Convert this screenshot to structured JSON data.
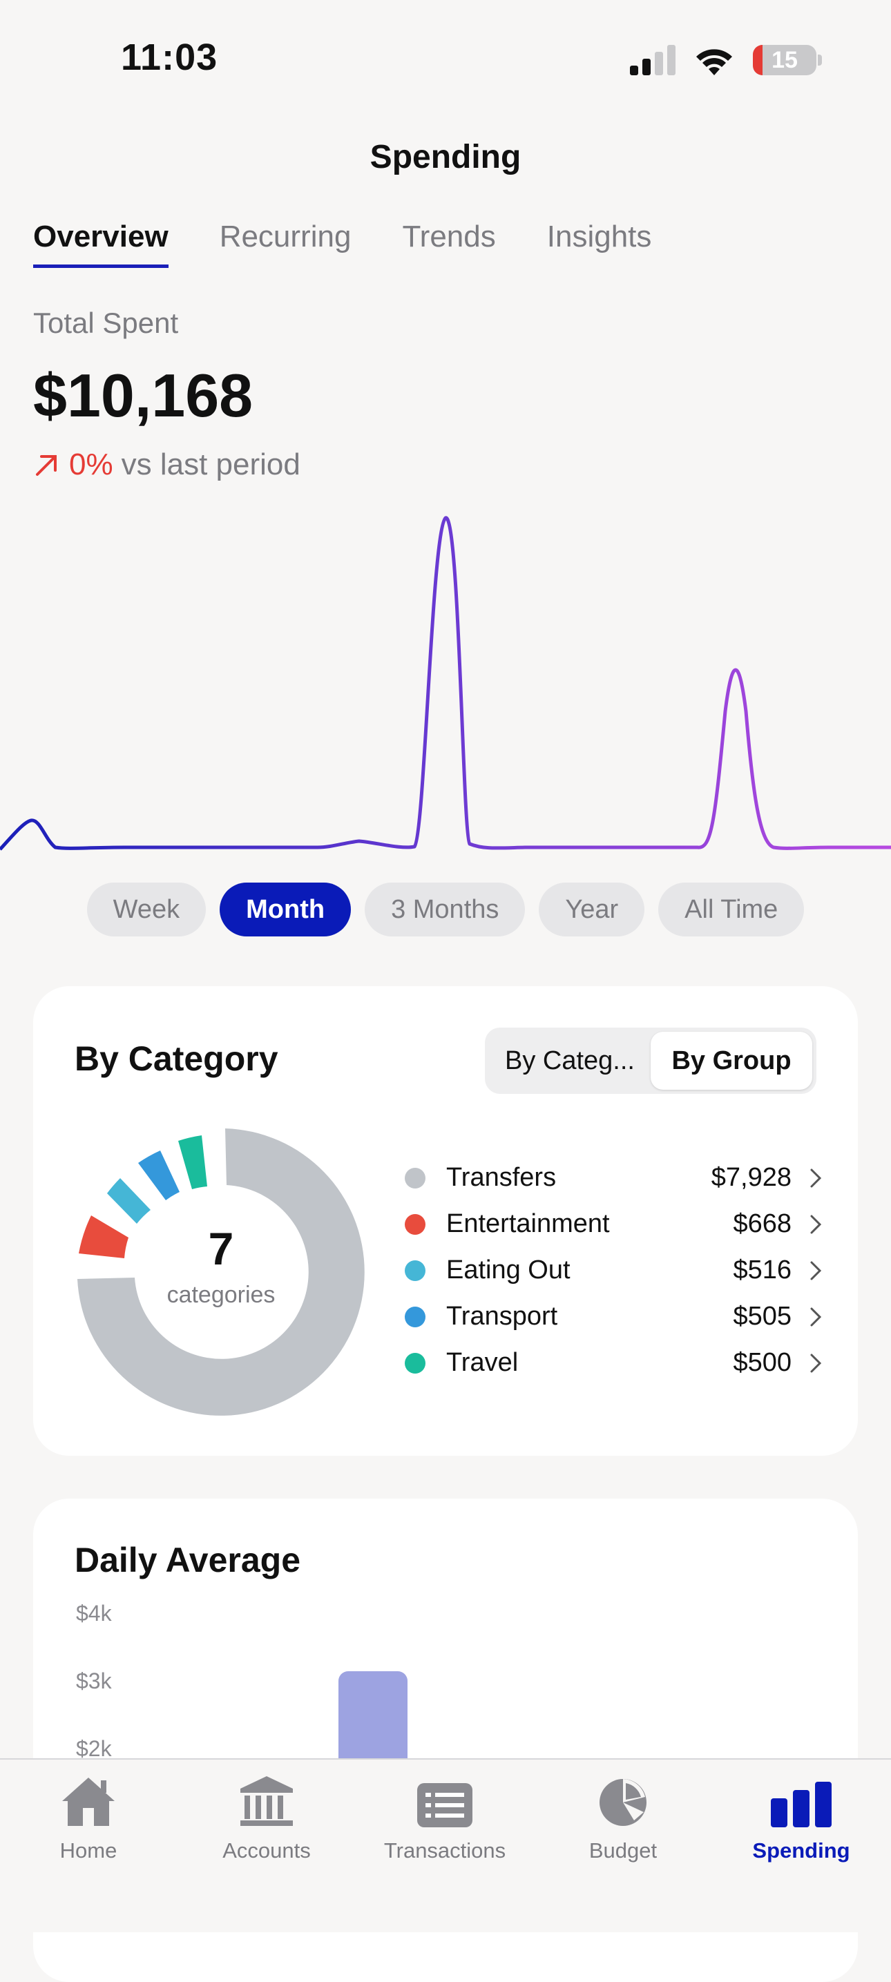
{
  "status_bar": {
    "time": "11:03",
    "battery": "15"
  },
  "header": {
    "title": "Spending"
  },
  "tabs": [
    {
      "label": "Overview",
      "active": true
    },
    {
      "label": "Recurring",
      "active": false
    },
    {
      "label": "Trends",
      "active": false
    },
    {
      "label": "Insights",
      "active": false
    }
  ],
  "summary": {
    "label": "Total Spent",
    "value": "$10,168",
    "change_pct": "0%",
    "change_text": "vs last period"
  },
  "periods": [
    "Week",
    "Month",
    "3 Months",
    "Year",
    "All Time"
  ],
  "selected_period": "Month",
  "category_card": {
    "title": "By Category",
    "toggle": [
      "By Categ...",
      "By Group"
    ],
    "toggle_selected": "By Group",
    "center_count": "7",
    "center_label": "categories",
    "items": [
      {
        "name": "Transfers",
        "amount": "$7,928",
        "color": "#c0c4c9"
      },
      {
        "name": "Entertainment",
        "amount": "$668",
        "color": "#e84c3d"
      },
      {
        "name": "Eating Out",
        "amount": "$516",
        "color": "#45b6d6"
      },
      {
        "name": "Transport",
        "amount": "$505",
        "color": "#3498db"
      },
      {
        "name": "Travel",
        "amount": "$500",
        "color": "#1abc9c"
      }
    ]
  },
  "daily_average": {
    "title": "Daily Average",
    "y_ticks": [
      "$4k",
      "$3k",
      "$2k"
    ],
    "bar_color": "#9da3e1"
  },
  "tabbar": [
    {
      "label": "Home",
      "icon": "home-icon"
    },
    {
      "label": "Accounts",
      "icon": "bank-icon"
    },
    {
      "label": "Transactions",
      "icon": "list-icon"
    },
    {
      "label": "Budget",
      "icon": "pie-icon"
    },
    {
      "label": "Spending",
      "icon": "bar-chart-icon",
      "active": true
    }
  ],
  "colors": {
    "accent": "#0a1bb8",
    "negative": "#e53b35",
    "line_start": "#1a1fb8",
    "line_end": "#b74ae0"
  }
}
